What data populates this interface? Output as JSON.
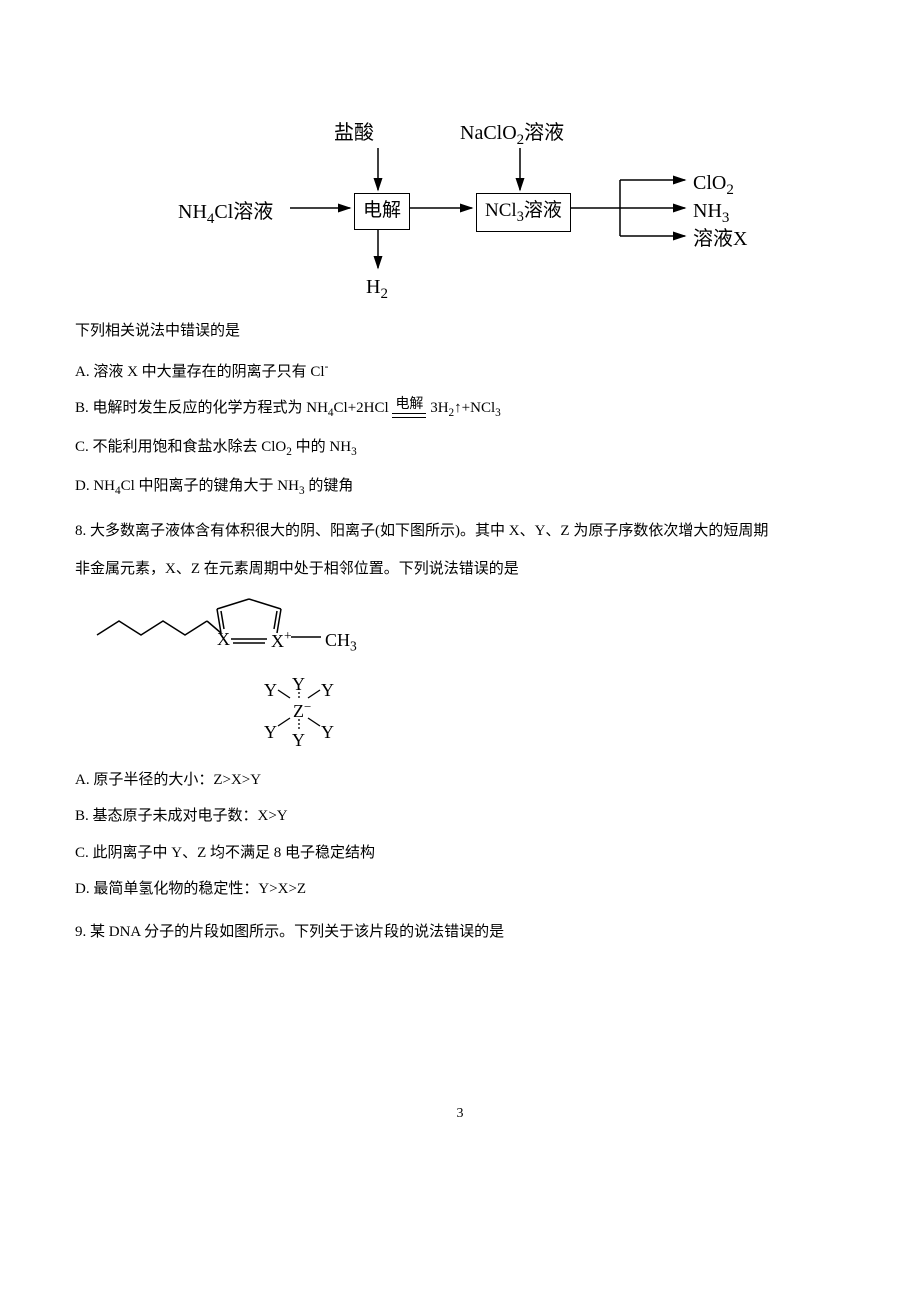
{
  "q7": {
    "flowchart": {
      "inputs": {
        "left": "NH₄Cl溶液",
        "top_left": "盐酸",
        "top_right": "NaClO₂溶液"
      },
      "box_left": "电解",
      "box_right": "NCl₃溶液",
      "bottom_left": "H₂",
      "outputs": {
        "r1": "ClO₂",
        "r2": "NH₃",
        "r3": "溶液X"
      }
    },
    "stem_tail": "下列相关说法中错误的是",
    "options": {
      "A": "A. 溶液 X 中大量存在的阴离子只有 Cl⁻",
      "B_prefix": "B. 电解时发生反应的化学方程式为 NH₄Cl+2HCl",
      "B_eqtop": "电解",
      "B_suffix": " 3H₂↑+NCl₃",
      "C": "C. 不能利用饱和食盐水除去 ClO₂ 中的 NH₃",
      "D": "D. NH₄Cl 中阳离子的键角大于 NH₃ 的键角"
    }
  },
  "q8": {
    "stem1": "8. 大多数离子液体含有体积很大的阴、阳离子(如下图所示)。其中 X、Y、Z 为原子序数依次增大的短周期",
    "stem2": "非金属元素，X、Z 在元素周期中处于相邻位置。下列说法错误的是",
    "diagram": {
      "labels": {
        "X": "X",
        "Xplus": "X⁺",
        "CH3": "CH₃",
        "Y": "Y",
        "Z": "Z"
      }
    },
    "options": {
      "A": "A.  原子半径的大小：Z>X>Y",
      "B": "B.  基态原子未成对电子数：X>Y",
      "C": "C.  此阴离子中 Y、Z 均不满足 8 电子稳定结构",
      "D": "D.  最简单氢化物的稳定性：Y>X>Z"
    }
  },
  "q9": {
    "stem": "9. 某 DNA 分子的片段如图所示。下列关于该片段的说法错误的是"
  },
  "page_number": "3"
}
